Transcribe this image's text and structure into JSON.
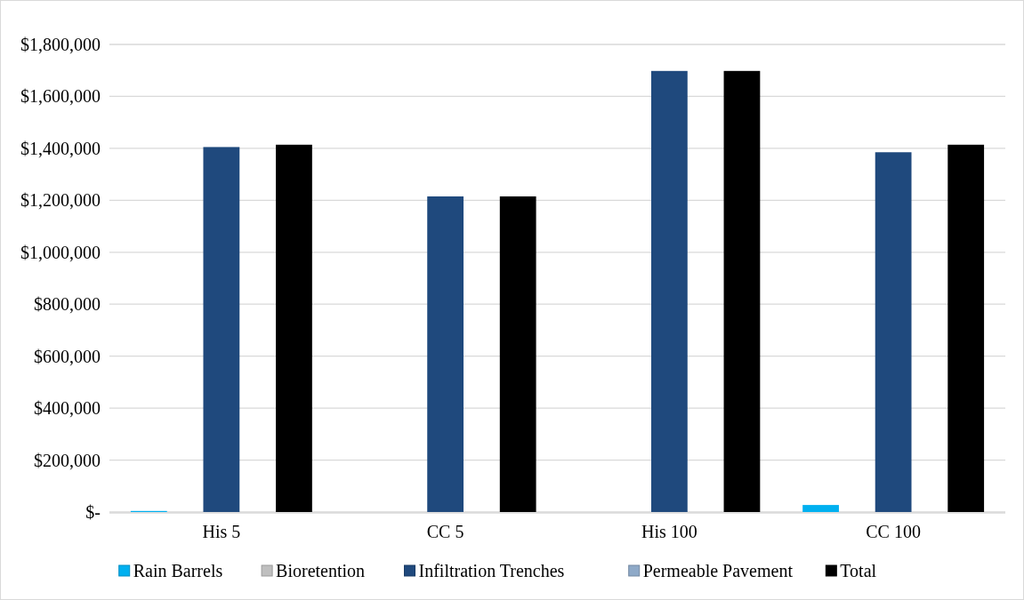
{
  "chart_data": {
    "type": "bar",
    "categories": [
      "His 5",
      "CC 5",
      "His 100",
      "CC 100"
    ],
    "series": [
      {
        "name": "Rain Barrels",
        "color": "#00b0f0",
        "values": [
          4000,
          0,
          0,
          27000
        ]
      },
      {
        "name": "Bioretention",
        "color": "#bfbfbf",
        "values": [
          0,
          0,
          0,
          0
        ]
      },
      {
        "name": "Infiltration Trenches",
        "color": "#1f497d",
        "values": [
          1405000,
          1215000,
          1698000,
          1385000
        ]
      },
      {
        "name": "Permeable Pavement",
        "color": "#8ea9c8",
        "values": [
          0,
          0,
          0,
          0
        ]
      },
      {
        "name": "Total",
        "color": "#000000",
        "values": [
          1414000,
          1215000,
          1698000,
          1414000
        ]
      }
    ],
    "ylim": [
      0,
      1800000
    ],
    "yticks": [
      {
        "value": 0,
        "label": "$-"
      },
      {
        "value": 200000,
        "label": "$200,000"
      },
      {
        "value": 400000,
        "label": "$400,000"
      },
      {
        "value": 600000,
        "label": "$600,000"
      },
      {
        "value": 800000,
        "label": "$800,000"
      },
      {
        "value": 1000000,
        "label": "$1,000,000"
      },
      {
        "value": 1200000,
        "label": "$1,200,000"
      },
      {
        "value": 1400000,
        "label": "$1,400,000"
      },
      {
        "value": 1600000,
        "label": "$1,600,000"
      },
      {
        "value": 1800000,
        "label": "$1,800,000"
      }
    ],
    "grid": "y",
    "legend": "bottom"
  }
}
